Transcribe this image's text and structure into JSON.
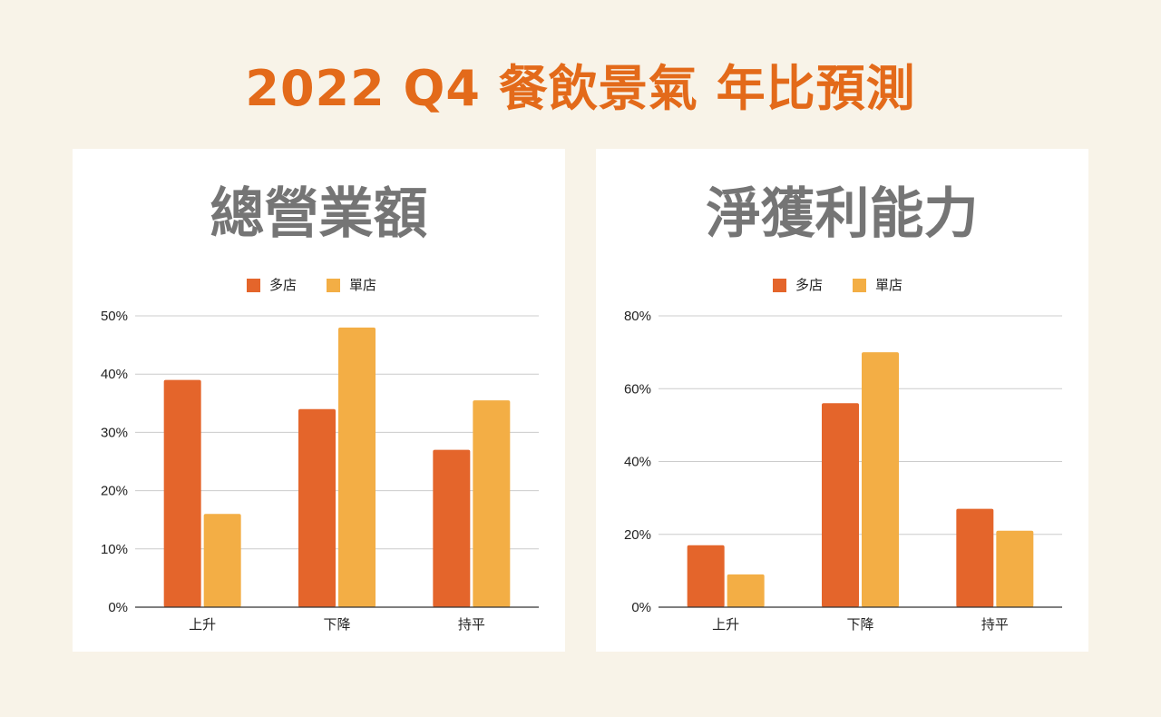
{
  "page": {
    "title": "2022 Q4 餐飲景氣 年比預測"
  },
  "colors": {
    "background": "#f8f3e8",
    "title": "#e36a1a",
    "multi_store": "#e4652b",
    "single_store": "#f3ae45",
    "chart_title": "#757575",
    "gridline": "#cccccc",
    "axis": "#333333"
  },
  "chart_data": [
    {
      "type": "bar",
      "title": "總營業額",
      "categories": [
        "上升",
        "下降",
        "持平"
      ],
      "series": [
        {
          "name": "多店",
          "values": [
            39,
            34,
            27
          ]
        },
        {
          "name": "單店",
          "values": [
            16,
            48,
            35.5
          ]
        }
      ],
      "xlabel": "",
      "ylabel": "",
      "ylim": [
        0,
        50
      ],
      "yticks": [
        0,
        10,
        20,
        30,
        40,
        50
      ],
      "ytick_labels": [
        "0%",
        "10%",
        "20%",
        "30%",
        "40%",
        "50%"
      ],
      "grid": true,
      "legend": "top-center"
    },
    {
      "type": "bar",
      "title": "淨獲利能力",
      "categories": [
        "上升",
        "下降",
        "持平"
      ],
      "series": [
        {
          "name": "多店",
          "values": [
            17,
            56,
            27
          ]
        },
        {
          "name": "單店",
          "values": [
            9,
            70,
            21
          ]
        }
      ],
      "xlabel": "",
      "ylabel": "",
      "ylim": [
        0,
        80
      ],
      "yticks": [
        0,
        20,
        40,
        60,
        80
      ],
      "ytick_labels": [
        "0%",
        "20%",
        "40%",
        "60%",
        "80%"
      ],
      "grid": true,
      "legend": "top-center"
    }
  ]
}
